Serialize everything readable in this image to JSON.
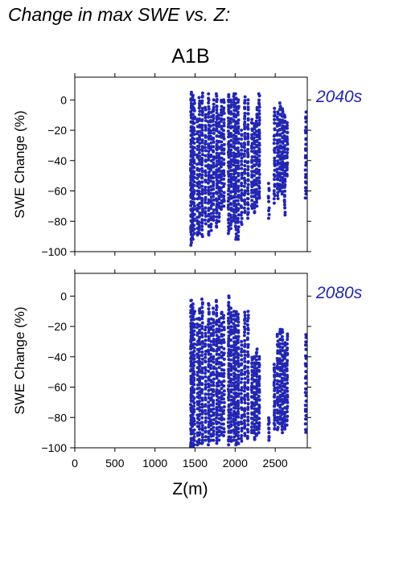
{
  "title": "Change in max SWE vs. Z:",
  "scenario": "A1B",
  "colors": {
    "points": "#2226b2",
    "label": "#2226b2"
  },
  "chart_data": [
    {
      "type": "scatter",
      "period": "2040s",
      "ylabel": "SWE Change (%)",
      "xlabel": "",
      "xlim": [
        0,
        2900
      ],
      "ylim": [
        -100,
        15
      ],
      "yticks": [
        0,
        -20,
        -40,
        -60,
        -80,
        -100
      ],
      "xticks": [
        0,
        500,
        1000,
        1500,
        2000,
        2500
      ],
      "columns": [
        {
          "x": 1450,
          "ymin": -96,
          "ymax": 5,
          "n": 60
        },
        {
          "x": 1470,
          "ymin": -92,
          "ymax": 3,
          "n": 55
        },
        {
          "x": 1490,
          "ymin": -88,
          "ymax": 0,
          "n": 35
        },
        {
          "x": 1530,
          "ymin": -90,
          "ymax": -12,
          "n": 30
        },
        {
          "x": 1555,
          "ymin": -88,
          "ymax": 2,
          "n": 45
        },
        {
          "x": 1590,
          "ymin": -90,
          "ymax": 5,
          "n": 50
        },
        {
          "x": 1630,
          "ymin": -82,
          "ymax": -5,
          "n": 35
        },
        {
          "x": 1670,
          "ymin": -90,
          "ymax": 4,
          "n": 50
        },
        {
          "x": 1700,
          "ymin": -86,
          "ymax": -8,
          "n": 35
        },
        {
          "x": 1730,
          "ymin": -80,
          "ymax": 0,
          "n": 40
        },
        {
          "x": 1770,
          "ymin": -84,
          "ymax": 4,
          "n": 50
        },
        {
          "x": 1800,
          "ymin": -80,
          "ymax": -10,
          "n": 35
        },
        {
          "x": 1830,
          "ymin": -72,
          "ymax": 0,
          "n": 35
        },
        {
          "x": 1860,
          "ymin": -70,
          "ymax": 0,
          "n": 30
        },
        {
          "x": 1920,
          "ymin": -88,
          "ymax": 4,
          "n": 55
        },
        {
          "x": 1950,
          "ymin": -85,
          "ymax": 0,
          "n": 45
        },
        {
          "x": 1985,
          "ymin": -80,
          "ymax": 4,
          "n": 45
        },
        {
          "x": 2010,
          "ymin": -92,
          "ymax": 4,
          "n": 50
        },
        {
          "x": 2040,
          "ymin": -92,
          "ymax": 0,
          "n": 45
        },
        {
          "x": 2080,
          "ymin": -82,
          "ymax": -20,
          "n": 30
        },
        {
          "x": 2120,
          "ymin": -75,
          "ymax": 2,
          "n": 40
        },
        {
          "x": 2160,
          "ymin": -78,
          "ymax": 0,
          "n": 40
        },
        {
          "x": 2210,
          "ymin": -72,
          "ymax": -12,
          "n": 30
        },
        {
          "x": 2240,
          "ymin": -75,
          "ymax": -15,
          "n": 30
        },
        {
          "x": 2270,
          "ymin": -70,
          "ymax": -5,
          "n": 35
        },
        {
          "x": 2300,
          "ymin": -65,
          "ymax": 4,
          "n": 40
        },
        {
          "x": 2420,
          "ymin": -78,
          "ymax": -55,
          "n": 10
        },
        {
          "x": 2490,
          "ymin": -68,
          "ymax": -5,
          "n": 30
        },
        {
          "x": 2530,
          "ymin": -65,
          "ymax": -8,
          "n": 30
        },
        {
          "x": 2560,
          "ymin": -60,
          "ymax": -2,
          "n": 35
        },
        {
          "x": 2590,
          "ymin": -62,
          "ymax": -5,
          "n": 35
        },
        {
          "x": 2620,
          "ymin": -76,
          "ymax": -10,
          "n": 35
        },
        {
          "x": 2650,
          "ymin": -50,
          "ymax": -15,
          "n": 20
        },
        {
          "x": 2880,
          "ymin": -65,
          "ymax": -8,
          "n": 25
        }
      ]
    },
    {
      "type": "scatter",
      "period": "2080s",
      "ylabel": "SWE Change (%)",
      "xlabel": "Z(m)",
      "xlim": [
        0,
        2900
      ],
      "ylim": [
        -100,
        15
      ],
      "yticks": [
        0,
        -20,
        -40,
        -60,
        -80,
        -100
      ],
      "xticks": [
        0,
        500,
        1000,
        1500,
        2000,
        2500
      ],
      "columns": [
        {
          "x": 1450,
          "ymin": -100,
          "ymax": -2,
          "n": 60
        },
        {
          "x": 1470,
          "ymin": -100,
          "ymax": -5,
          "n": 55
        },
        {
          "x": 1490,
          "ymin": -98,
          "ymax": -10,
          "n": 35
        },
        {
          "x": 1530,
          "ymin": -98,
          "ymax": -15,
          "n": 30
        },
        {
          "x": 1555,
          "ymin": -98,
          "ymax": -8,
          "n": 45
        },
        {
          "x": 1590,
          "ymin": -98,
          "ymax": -2,
          "n": 50
        },
        {
          "x": 1630,
          "ymin": -95,
          "ymax": -20,
          "n": 35
        },
        {
          "x": 1670,
          "ymin": -98,
          "ymax": -5,
          "n": 50
        },
        {
          "x": 1700,
          "ymin": -95,
          "ymax": -15,
          "n": 35
        },
        {
          "x": 1730,
          "ymin": -95,
          "ymax": -8,
          "n": 40
        },
        {
          "x": 1770,
          "ymin": -98,
          "ymax": -2,
          "n": 50
        },
        {
          "x": 1800,
          "ymin": -95,
          "ymax": -15,
          "n": 35
        },
        {
          "x": 1830,
          "ymin": -92,
          "ymax": -10,
          "n": 35
        },
        {
          "x": 1860,
          "ymin": -92,
          "ymax": -12,
          "n": 30
        },
        {
          "x": 1920,
          "ymin": -98,
          "ymax": 0,
          "n": 55
        },
        {
          "x": 1950,
          "ymin": -96,
          "ymax": -8,
          "n": 45
        },
        {
          "x": 1985,
          "ymin": -95,
          "ymax": -10,
          "n": 45
        },
        {
          "x": 2010,
          "ymin": -98,
          "ymax": -10,
          "n": 50
        },
        {
          "x": 2040,
          "ymin": -98,
          "ymax": -12,
          "n": 45
        },
        {
          "x": 2080,
          "ymin": -96,
          "ymax": -30,
          "n": 30
        },
        {
          "x": 2120,
          "ymin": -92,
          "ymax": -10,
          "n": 40
        },
        {
          "x": 2160,
          "ymin": -94,
          "ymax": -10,
          "n": 40
        },
        {
          "x": 2210,
          "ymin": -90,
          "ymax": -40,
          "n": 30
        },
        {
          "x": 2240,
          "ymin": -95,
          "ymax": -40,
          "n": 30
        },
        {
          "x": 2270,
          "ymin": -92,
          "ymax": -35,
          "n": 35
        },
        {
          "x": 2300,
          "ymin": -90,
          "ymax": -40,
          "n": 30
        },
        {
          "x": 2420,
          "ymin": -95,
          "ymax": -80,
          "n": 10
        },
        {
          "x": 2490,
          "ymin": -88,
          "ymax": -45,
          "n": 30
        },
        {
          "x": 2530,
          "ymin": -88,
          "ymax": -25,
          "n": 30
        },
        {
          "x": 2560,
          "ymin": -85,
          "ymax": -22,
          "n": 35
        },
        {
          "x": 2590,
          "ymin": -90,
          "ymax": -22,
          "n": 35
        },
        {
          "x": 2620,
          "ymin": -88,
          "ymax": -30,
          "n": 35
        },
        {
          "x": 2650,
          "ymin": -85,
          "ymax": -25,
          "n": 30
        },
        {
          "x": 2880,
          "ymin": -90,
          "ymax": -25,
          "n": 25
        }
      ]
    }
  ]
}
